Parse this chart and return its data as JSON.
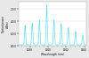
{
  "xlabel": "Wavelength (nm)",
  "ylabel": "Optical power\n(dBm)",
  "xlim": [
    1296.75,
    1304.25
  ],
  "ylim": [
    -80,
    -8
  ],
  "yticks": [
    -80,
    -60,
    -40,
    -20
  ],
  "ytick_labels": [
    "-80.0",
    "-60.0",
    "-40.0",
    "-20.0"
  ],
  "line_color": "#66ddee",
  "bg_color": "#e8e8e8",
  "plot_bg": "#ffffff",
  "peaks": [
    {
      "wl": 1297.45,
      "power": -46
    },
    {
      "wl": 1298.25,
      "power": -42
    },
    {
      "wl": 1299.05,
      "power": -38
    },
    {
      "wl": 1299.85,
      "power": -13
    },
    {
      "wl": 1300.65,
      "power": -37
    },
    {
      "wl": 1301.45,
      "power": -44
    },
    {
      "wl": 1302.25,
      "power": -50
    },
    {
      "wl": 1303.05,
      "power": -56
    },
    {
      "wl": 1303.85,
      "power": -62
    }
  ],
  "noise_floor": -78,
  "sigma": 0.06,
  "figsize": [
    1.0,
    0.66
  ],
  "dpi": 100
}
